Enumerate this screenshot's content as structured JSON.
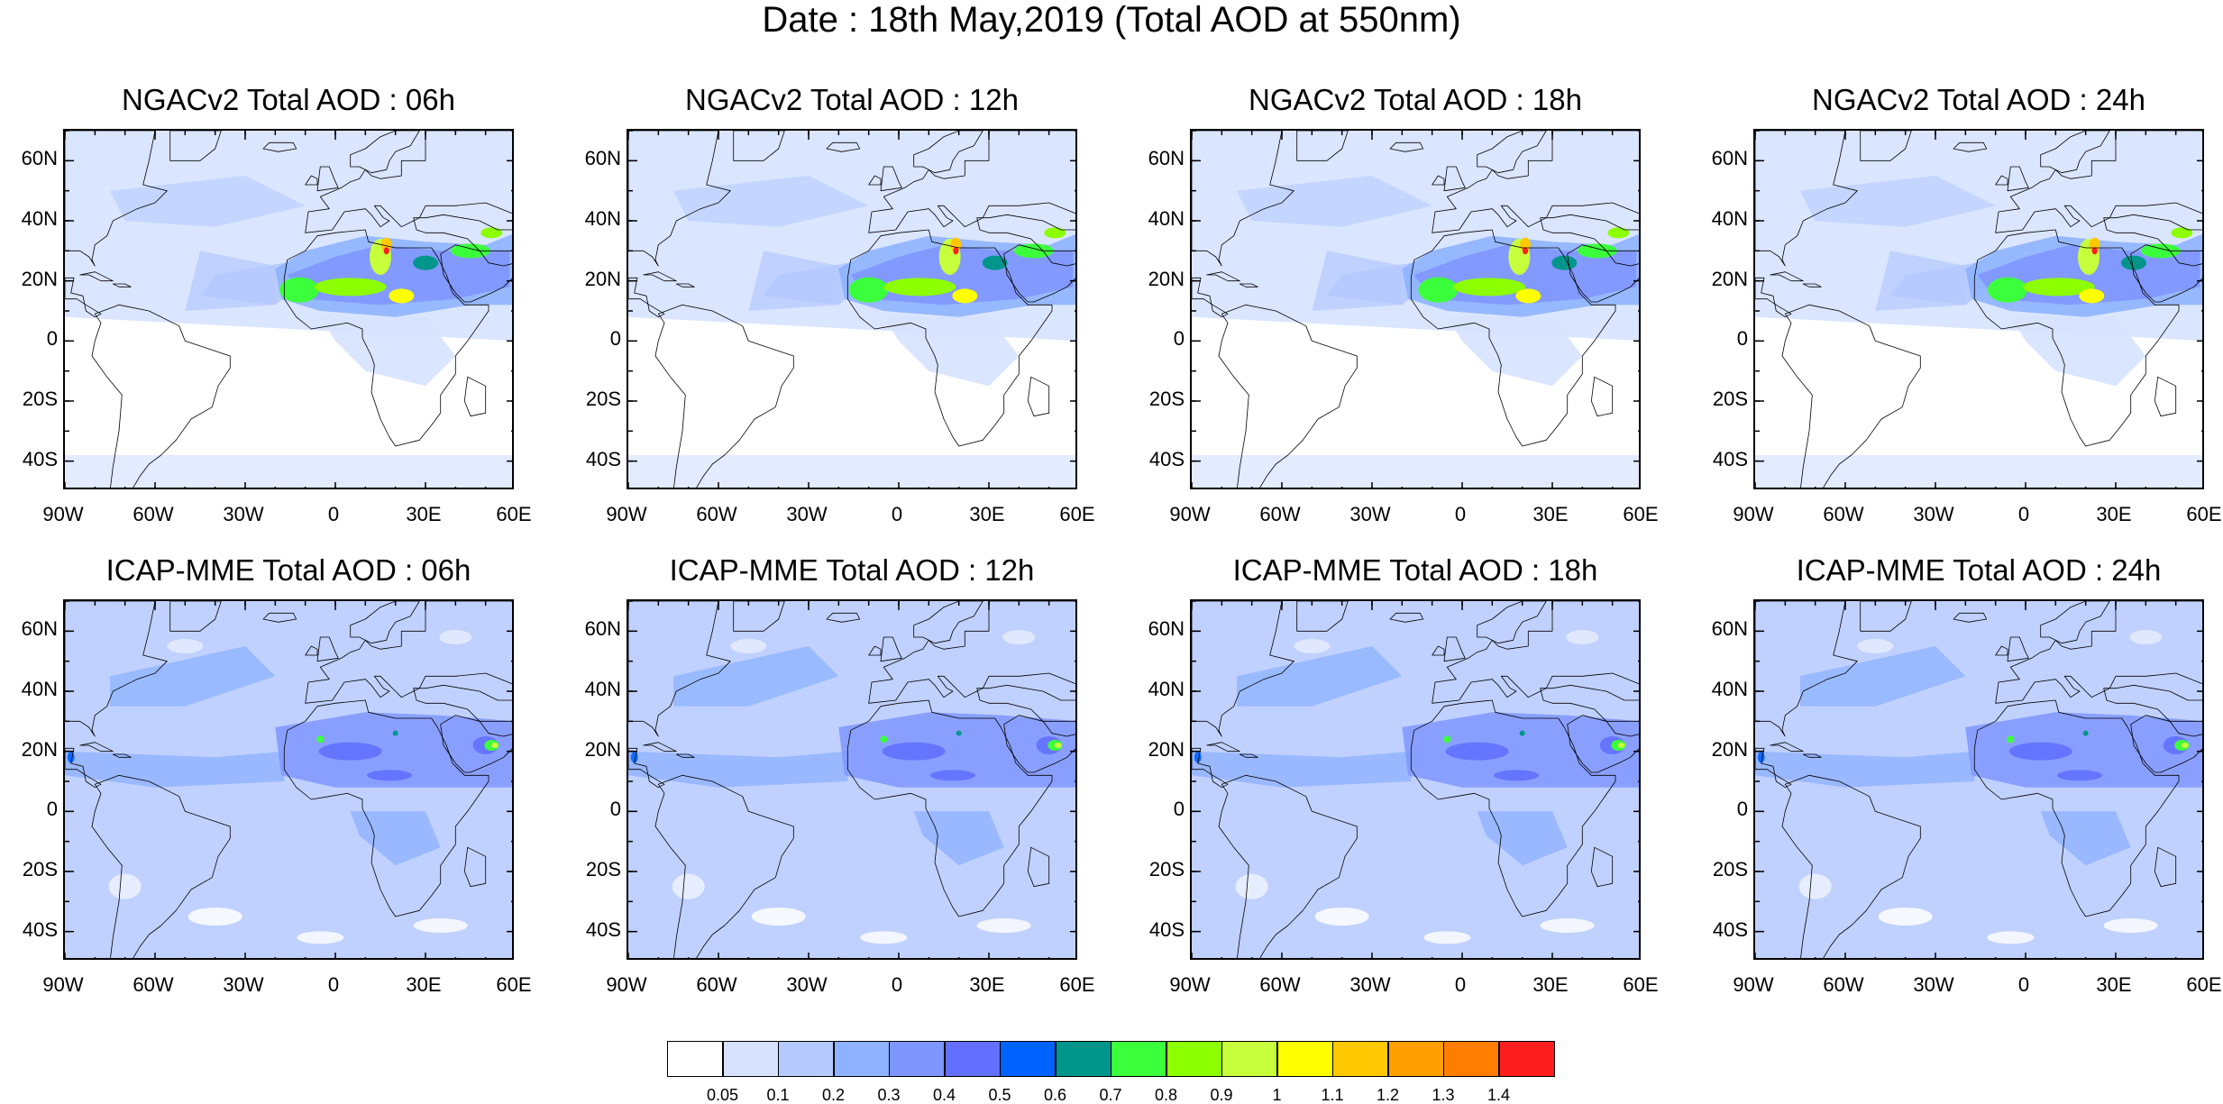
{
  "title": "Date : 18th May,2019 (Total AOD at 550nm)",
  "panels": [
    {
      "title": "NGACv2 Total AOD : 06h",
      "model": "NGACv2",
      "hour": 6
    },
    {
      "title": "NGACv2 Total AOD : 12h",
      "model": "NGACv2",
      "hour": 12
    },
    {
      "title": "NGACv2 Total AOD : 18h",
      "model": "NGACv2",
      "hour": 18
    },
    {
      "title": "NGACv2 Total AOD : 24h",
      "model": "NGACv2",
      "hour": 24
    },
    {
      "title": "ICAP-MME Total AOD : 06h",
      "model": "ICAP-MME",
      "hour": 6
    },
    {
      "title": "ICAP-MME Total AOD : 12h",
      "model": "ICAP-MME",
      "hour": 12
    },
    {
      "title": "ICAP-MME Total AOD : 18h",
      "model": "ICAP-MME",
      "hour": 18
    },
    {
      "title": "ICAP-MME Total AOD : 24h",
      "model": "ICAP-MME",
      "hour": 24
    }
  ],
  "lat_labels": [
    "60N",
    "40N",
    "20N",
    "0",
    "20S",
    "40S"
  ],
  "lon_labels": [
    "90W",
    "60W",
    "30W",
    "0",
    "30E",
    "60E"
  ],
  "extent": {
    "lon_min": -90,
    "lon_max": 60,
    "lat_min": -50,
    "lat_max": 70
  },
  "colorbar": {
    "colors": [
      "#ffffff",
      "#d6e2ff",
      "#b5c9ff",
      "#8eb2ff",
      "#7f96ff",
      "#6370ff",
      "#0063ff",
      "#00968c",
      "#3cff3c",
      "#8cff00",
      "#c8ff3c",
      "#ffff00",
      "#ffc800",
      "#ffa000",
      "#ff7d00",
      "#ff1e1e"
    ],
    "labels": [
      "0.05",
      "0.1",
      "0.2",
      "0.3",
      "0.4",
      "0.5",
      "0.6",
      "0.7",
      "0.8",
      "0.9",
      "1",
      "1.1",
      "1.2",
      "1.3",
      "1.4"
    ]
  }
}
